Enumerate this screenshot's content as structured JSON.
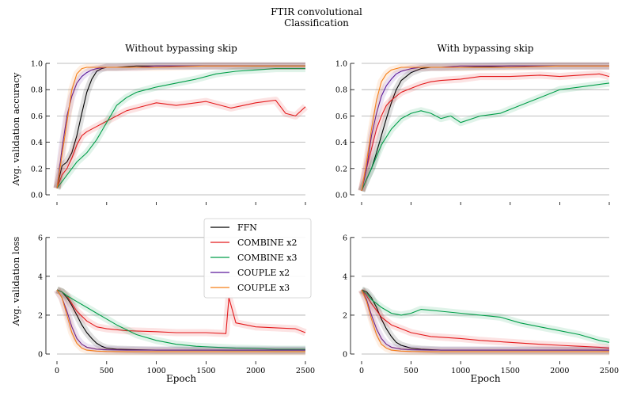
{
  "figure": {
    "title_line1": "FTIR convolutional",
    "title_line2": "Classification"
  },
  "colors": {
    "FFN": "#000000",
    "COMBINE x2": "#e41a1c",
    "COMBINE x3": "#009e49",
    "COUPLE x2": "#5a189a",
    "COUPLE x3": "#f57f17",
    "grid": "#aaaaaa"
  },
  "legend": {
    "placement": "top-right of bottom-left panel",
    "entries": [
      "FFN",
      "COMBINE x2",
      "COMBINE x3",
      "COUPLE x2",
      "COUPLE x3"
    ]
  },
  "chart_data": [
    {
      "type": "line",
      "panel": "top-left",
      "title": "Without bypassing skip",
      "ylabel": "Avg. validation accuracy",
      "xlabel": "",
      "xlim": [
        0,
        2500
      ],
      "ylim": [
        0,
        1.0
      ],
      "yticks": [
        "0.0",
        "0.2",
        "0.4",
        "0.6",
        "0.8",
        "1.0"
      ],
      "xticks": [
        0,
        500,
        1000,
        1500,
        2000,
        2500
      ],
      "grid": "horizontal",
      "series": [
        {
          "name": "FFN",
          "x": [
            0,
            50,
            100,
            150,
            200,
            250,
            300,
            350,
            400,
            450,
            500,
            600,
            800,
            1000,
            1500,
            2000,
            2500
          ],
          "y": [
            0.05,
            0.22,
            0.25,
            0.32,
            0.45,
            0.62,
            0.78,
            0.88,
            0.94,
            0.96,
            0.97,
            0.97,
            0.98,
            0.98,
            0.98,
            0.98,
            0.98
          ]
        },
        {
          "name": "COMBINE x2",
          "x": [
            0,
            50,
            100,
            150,
            200,
            250,
            300,
            400,
            500,
            600,
            700,
            800,
            900,
            1000,
            1200,
            1500,
            1750,
            2000,
            2200,
            2300,
            2400,
            2500
          ],
          "y": [
            0.05,
            0.15,
            0.2,
            0.28,
            0.38,
            0.45,
            0.48,
            0.52,
            0.56,
            0.6,
            0.64,
            0.66,
            0.68,
            0.7,
            0.68,
            0.71,
            0.66,
            0.7,
            0.72,
            0.62,
            0.6,
            0.67
          ]
        },
        {
          "name": "COMBINE x3",
          "x": [
            0,
            50,
            100,
            200,
            300,
            400,
            500,
            600,
            700,
            800,
            900,
            1000,
            1200,
            1400,
            1600,
            1800,
            2000,
            2200,
            2500
          ],
          "y": [
            0.05,
            0.1,
            0.15,
            0.25,
            0.32,
            0.42,
            0.55,
            0.68,
            0.74,
            0.78,
            0.8,
            0.82,
            0.85,
            0.88,
            0.92,
            0.94,
            0.95,
            0.96,
            0.96
          ]
        },
        {
          "name": "COUPLE x2",
          "x": [
            0,
            50,
            100,
            150,
            200,
            250,
            300,
            350,
            400,
            500,
            600,
            700,
            800,
            1000,
            1500,
            2000,
            2500
          ],
          "y": [
            0.05,
            0.35,
            0.6,
            0.75,
            0.85,
            0.9,
            0.93,
            0.95,
            0.96,
            0.97,
            0.97,
            0.97,
            0.97,
            0.98,
            0.98,
            0.98,
            0.98
          ]
        },
        {
          "name": "COUPLE x3",
          "x": [
            0,
            50,
            100,
            150,
            200,
            250,
            300,
            400,
            500,
            700,
            1000,
            1500,
            2000,
            2500
          ],
          "y": [
            0.05,
            0.3,
            0.55,
            0.8,
            0.92,
            0.96,
            0.97,
            0.97,
            0.97,
            0.97,
            0.97,
            0.98,
            0.98,
            0.98
          ]
        }
      ]
    },
    {
      "type": "line",
      "panel": "top-right",
      "title": "With bypassing skip",
      "ylabel": "",
      "xlabel": "",
      "xlim": [
        0,
        2500
      ],
      "ylim": [
        0,
        1.0
      ],
      "yticks": [
        "0.0",
        "0.2",
        "0.4",
        "0.6",
        "0.8",
        "1.0"
      ],
      "xticks": [
        0,
        500,
        1000,
        1500,
        2000,
        2500
      ],
      "grid": "horizontal",
      "series": [
        {
          "name": "FFN",
          "x": [
            0,
            50,
            100,
            150,
            200,
            250,
            300,
            350,
            400,
            500,
            600,
            700,
            800,
            1000,
            1500,
            2000,
            2500
          ],
          "y": [
            0.03,
            0.12,
            0.2,
            0.32,
            0.45,
            0.58,
            0.7,
            0.8,
            0.87,
            0.93,
            0.96,
            0.97,
            0.97,
            0.97,
            0.98,
            0.98,
            0.98
          ]
        },
        {
          "name": "COMBINE x2",
          "x": [
            0,
            50,
            100,
            150,
            200,
            250,
            300,
            400,
            500,
            600,
            700,
            800,
            1000,
            1200,
            1500,
            1800,
            2000,
            2200,
            2400,
            2500
          ],
          "y": [
            0.03,
            0.2,
            0.35,
            0.5,
            0.6,
            0.68,
            0.72,
            0.78,
            0.81,
            0.84,
            0.86,
            0.87,
            0.88,
            0.9,
            0.9,
            0.91,
            0.9,
            0.91,
            0.92,
            0.9
          ]
        },
        {
          "name": "COMBINE x3",
          "x": [
            0,
            50,
            100,
            200,
            300,
            400,
            500,
            600,
            700,
            800,
            900,
            1000,
            1200,
            1400,
            1600,
            1800,
            2000,
            2200,
            2400,
            2500
          ],
          "y": [
            0.03,
            0.12,
            0.2,
            0.38,
            0.5,
            0.58,
            0.62,
            0.64,
            0.62,
            0.58,
            0.6,
            0.55,
            0.6,
            0.62,
            0.68,
            0.74,
            0.8,
            0.82,
            0.84,
            0.85
          ]
        },
        {
          "name": "COUPLE x2",
          "x": [
            0,
            50,
            100,
            150,
            200,
            250,
            300,
            350,
            400,
            500,
            600,
            800,
            1000,
            1500,
            2000,
            2500
          ],
          "y": [
            0.03,
            0.2,
            0.45,
            0.62,
            0.75,
            0.83,
            0.88,
            0.92,
            0.94,
            0.96,
            0.97,
            0.97,
            0.98,
            0.98,
            0.98,
            0.98
          ]
        },
        {
          "name": "COUPLE x3",
          "x": [
            0,
            50,
            100,
            150,
            200,
            250,
            300,
            400,
            500,
            700,
            1000,
            1500,
            2000,
            2500
          ],
          "y": [
            0.03,
            0.25,
            0.5,
            0.72,
            0.86,
            0.92,
            0.95,
            0.97,
            0.97,
            0.97,
            0.97,
            0.97,
            0.98,
            0.98
          ]
        }
      ]
    },
    {
      "type": "line",
      "panel": "bottom-left",
      "title": "",
      "ylabel": "Avg. validation loss",
      "xlabel": "Epoch",
      "xlim": [
        0,
        2500
      ],
      "ylim": [
        0,
        7.5
      ],
      "yticks": [
        "0",
        "2",
        "4",
        "6"
      ],
      "xticks": [
        "0",
        "500",
        "1000",
        "1500",
        "2000",
        "2500"
      ],
      "grid": "horizontal",
      "series": [
        {
          "name": "FFN",
          "x": [
            0,
            50,
            100,
            150,
            200,
            250,
            300,
            350,
            400,
            450,
            500,
            600,
            800,
            1000,
            1500,
            2000,
            2500
          ],
          "y": [
            3.3,
            3.2,
            2.9,
            2.5,
            2.0,
            1.5,
            1.1,
            0.8,
            0.55,
            0.4,
            0.3,
            0.25,
            0.22,
            0.2,
            0.2,
            0.2,
            0.2
          ]
        },
        {
          "name": "COMBINE x2",
          "x": [
            0,
            50,
            100,
            150,
            200,
            300,
            400,
            500,
            700,
            1000,
            1200,
            1500,
            1700,
            1730,
            1800,
            2000,
            2200,
            2400,
            2500
          ],
          "y": [
            3.3,
            3.2,
            3.0,
            2.6,
            2.2,
            1.7,
            1.4,
            1.3,
            1.2,
            1.15,
            1.1,
            1.1,
            1.05,
            2.9,
            1.6,
            1.4,
            1.35,
            1.3,
            1.1
          ]
        },
        {
          "name": "COMBINE x3",
          "x": [
            0,
            50,
            100,
            200,
            300,
            400,
            500,
            600,
            800,
            1000,
            1200,
            1400,
            1600,
            1800,
            2000,
            2200,
            2500
          ],
          "y": [
            3.3,
            3.2,
            3.0,
            2.7,
            2.4,
            2.1,
            1.8,
            1.5,
            1.0,
            0.7,
            0.5,
            0.4,
            0.35,
            0.3,
            0.28,
            0.25,
            0.25
          ]
        },
        {
          "name": "COUPLE x2",
          "x": [
            0,
            50,
            100,
            150,
            200,
            250,
            300,
            400,
            500,
            700,
            1000,
            1500,
            2000,
            2500
          ],
          "y": [
            3.3,
            2.9,
            2.2,
            1.4,
            0.8,
            0.5,
            0.35,
            0.25,
            0.22,
            0.2,
            0.2,
            0.2,
            0.2,
            0.2
          ]
        },
        {
          "name": "COUPLE x3",
          "x": [
            0,
            50,
            100,
            150,
            200,
            250,
            300,
            400,
            500,
            700,
            1000,
            1500,
            2000,
            2500
          ],
          "y": [
            3.3,
            2.9,
            2.0,
            1.1,
            0.55,
            0.3,
            0.2,
            0.15,
            0.13,
            0.12,
            0.12,
            0.12,
            0.12,
            0.12
          ]
        }
      ]
    },
    {
      "type": "line",
      "panel": "bottom-right",
      "title": "",
      "ylabel": "",
      "xlabel": "Epoch",
      "xlim": [
        0,
        2500
      ],
      "ylim": [
        0,
        7.5
      ],
      "yticks": [
        "0",
        "2",
        "4",
        "6"
      ],
      "xticks": [
        "0",
        "500",
        "1000",
        "1500",
        "2000",
        "2500"
      ],
      "grid": "horizontal",
      "series": [
        {
          "name": "FFN",
          "x": [
            0,
            50,
            100,
            150,
            200,
            250,
            300,
            350,
            400,
            500,
            600,
            800,
            1000,
            1500,
            2000,
            2500
          ],
          "y": [
            3.3,
            3.2,
            2.9,
            2.4,
            1.8,
            1.3,
            0.9,
            0.6,
            0.45,
            0.3,
            0.25,
            0.2,
            0.2,
            0.2,
            0.2,
            0.2
          ]
        },
        {
          "name": "COMBINE x2",
          "x": [
            0,
            50,
            100,
            200,
            300,
            400,
            500,
            700,
            1000,
            1200,
            1500,
            1800,
            2000,
            2200,
            2400,
            2500
          ],
          "y": [
            3.3,
            3.0,
            2.6,
            1.9,
            1.5,
            1.3,
            1.1,
            0.9,
            0.8,
            0.7,
            0.6,
            0.5,
            0.45,
            0.4,
            0.35,
            0.3
          ]
        },
        {
          "name": "COMBINE x3",
          "x": [
            0,
            50,
            100,
            200,
            300,
            400,
            500,
            600,
            800,
            1000,
            1200,
            1400,
            1600,
            1800,
            2000,
            2200,
            2400,
            2500
          ],
          "y": [
            3.3,
            3.1,
            2.8,
            2.4,
            2.1,
            2.0,
            2.1,
            2.3,
            2.2,
            2.1,
            2.0,
            1.9,
            1.6,
            1.4,
            1.2,
            1.0,
            0.7,
            0.6
          ]
        },
        {
          "name": "COUPLE x2",
          "x": [
            0,
            50,
            100,
            150,
            200,
            250,
            300,
            400,
            500,
            700,
            1000,
            1500,
            2000,
            2500
          ],
          "y": [
            3.3,
            2.8,
            2.0,
            1.3,
            0.8,
            0.5,
            0.35,
            0.25,
            0.22,
            0.2,
            0.2,
            0.2,
            0.2,
            0.2
          ]
        },
        {
          "name": "COUPLE x3",
          "x": [
            0,
            50,
            100,
            150,
            200,
            250,
            300,
            400,
            500,
            700,
            1000,
            1500,
            2000,
            2500
          ],
          "y": [
            3.3,
            2.7,
            1.8,
            1.0,
            0.5,
            0.3,
            0.2,
            0.15,
            0.13,
            0.12,
            0.12,
            0.12,
            0.12,
            0.12
          ]
        }
      ]
    }
  ]
}
